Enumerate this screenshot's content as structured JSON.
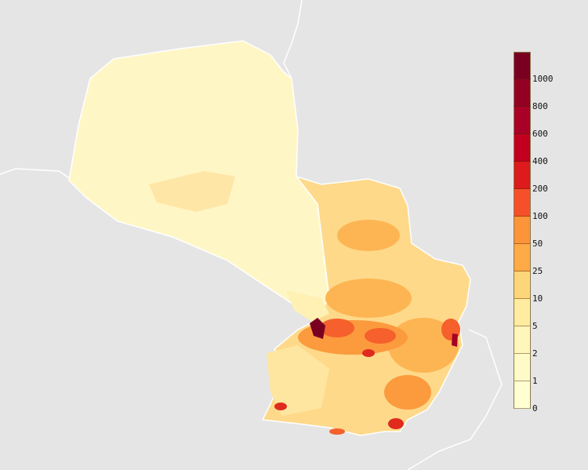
{
  "legend": {
    "labels": [
      "1000",
      "800",
      "600",
      "400",
      "200",
      "100",
      "50",
      "25",
      "10",
      "5",
      "2",
      "1",
      "0"
    ],
    "colors": [
      "#7a0022",
      "#920024",
      "#a80026",
      "#c1001f",
      "#dd1a1c",
      "#f5502a",
      "#fc9439",
      "#fdaa47",
      "#fed67a",
      "#ffeca0",
      "#fff6bb",
      "#fffbc8",
      "#ffffd2"
    ]
  },
  "map": {
    "background": "#e5e5e5",
    "border_color": "#ffffff",
    "low_density_color": "#fff6c6",
    "mid_density_color": "#fed98a"
  }
}
